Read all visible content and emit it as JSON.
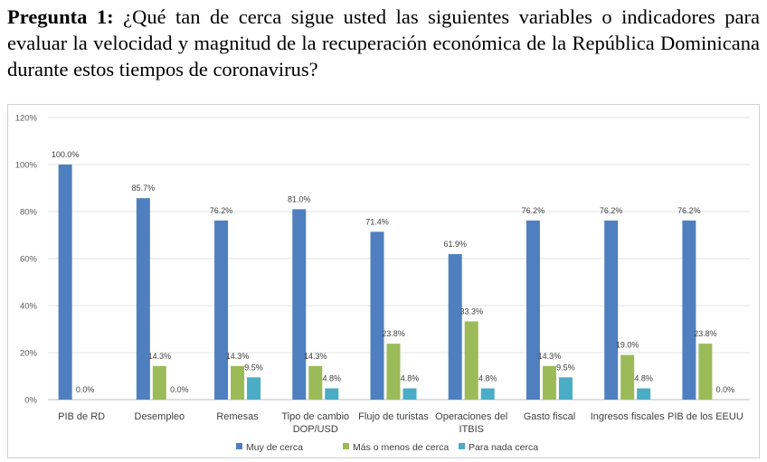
{
  "question": {
    "label": "Pregunta 1:",
    "text": "¿Qué tan de cerca sigue usted las siguientes variables o indicadores para evaluar la velocidad y magnitud de la recuperación económica de la República Dominicana durante estos tiempos de coronavirus?"
  },
  "colors": {
    "muy": "#4f7fbf",
    "mas": "#9bbb59",
    "nada": "#4bacc6"
  },
  "chart_data": {
    "type": "bar",
    "title": "",
    "xlabel": "",
    "ylabel": "",
    "ylim": [
      0,
      120
    ],
    "yticks": [
      "0%",
      "20%",
      "40%",
      "60%",
      "80%",
      "100%",
      "120%"
    ],
    "grid": true,
    "legend_position": "bottom",
    "categories": [
      [
        "PIB de RD"
      ],
      [
        "Desempleo"
      ],
      [
        "Remesas"
      ],
      [
        "Tipo de cambio",
        "DOP/USD"
      ],
      [
        "Flujo de turistas"
      ],
      [
        "Operaciones del",
        "ITBIS"
      ],
      [
        "Gasto fiscal"
      ],
      [
        "Ingresos fiscales"
      ],
      [
        "PIB de los EEUU"
      ]
    ],
    "series": [
      {
        "name": "Muy de cerca",
        "values": [
          100.0,
          85.7,
          76.2,
          81.0,
          71.4,
          61.9,
          76.2,
          76.2,
          76.2
        ],
        "labels": [
          "100.0%",
          "85.7%",
          "76.2%",
          "81.0%",
          "71.4%",
          "61.9%",
          "76.2%",
          "76.2%",
          "76.2%"
        ]
      },
      {
        "name": "Más o menos de cerca",
        "values": [
          0.0,
          14.3,
          14.3,
          14.3,
          23.8,
          33.3,
          14.3,
          19.0,
          23.8
        ],
        "labels": [
          "0.0%",
          "14.3%",
          "14.3%",
          "14.3%",
          "23.8%",
          "33.3%",
          "14.3%",
          "19.0%",
          "23.8%"
        ]
      },
      {
        "name": "Para nada cerca",
        "values": [
          0.0,
          0.0,
          9.5,
          4.8,
          4.8,
          4.8,
          9.5,
          4.8,
          0.0
        ],
        "labels": [
          "",
          "0.0%",
          "9.5%",
          "4.8%",
          "4.8%",
          "4.8%",
          "9.5%",
          "4.8%",
          "0.0%"
        ]
      }
    ]
  }
}
